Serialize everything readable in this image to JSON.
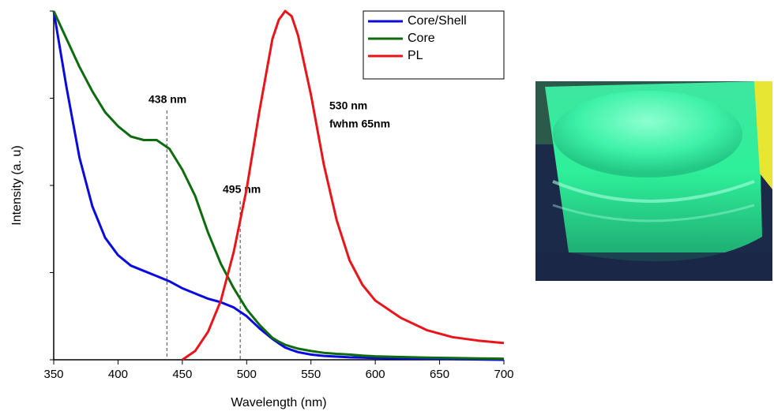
{
  "chart_data": {
    "type": "line",
    "xlabel": "Wavelength (nm)",
    "ylabel": "Intensity (a. u)",
    "x": [
      350,
      360,
      370,
      380,
      390,
      400,
      410,
      420,
      430,
      440,
      450,
      460,
      470,
      480,
      490,
      500,
      510,
      520,
      525,
      530,
      535,
      540,
      550,
      560,
      570,
      580,
      590,
      600,
      620,
      640,
      660,
      680,
      700
    ],
    "series": [
      {
        "name": "Core/Shell",
        "color": "#0a0adf",
        "values": [
          1.0,
          0.78,
          0.58,
          0.44,
          0.35,
          0.3,
          0.27,
          0.255,
          0.24,
          0.225,
          0.205,
          0.19,
          0.175,
          0.165,
          0.15,
          0.125,
          0.09,
          0.06,
          0.047,
          0.035,
          0.028,
          0.022,
          0.015,
          0.011,
          0.009,
          0.007,
          0.006,
          0.005,
          0.004,
          0.003,
          0.002,
          0.001,
          0
        ]
      },
      {
        "name": "Core",
        "color": "#0e6b0e",
        "values": [
          1.0,
          0.92,
          0.84,
          0.77,
          0.71,
          0.67,
          0.64,
          0.63,
          0.63,
          0.605,
          0.545,
          0.47,
          0.365,
          0.275,
          0.205,
          0.145,
          0.1,
          0.063,
          0.052,
          0.043,
          0.037,
          0.032,
          0.025,
          0.02,
          0.017,
          0.015,
          0.012,
          0.01,
          0.008,
          0.006,
          0.005,
          0.004,
          0.003
        ]
      },
      {
        "name": "PL",
        "color": "#e8161b",
        "values": [
          null,
          null,
          null,
          null,
          null,
          null,
          null,
          null,
          null,
          null,
          0,
          0.025,
          0.08,
          0.17,
          0.31,
          0.49,
          0.715,
          0.92,
          0.975,
          1.0,
          0.985,
          0.93,
          0.76,
          0.56,
          0.4,
          0.285,
          0.215,
          0.17,
          0.12,
          0.085,
          0.065,
          0.055,
          0.048
        ]
      }
    ],
    "xlim": [
      350,
      700
    ],
    "xticks": [
      350,
      400,
      450,
      500,
      550,
      600,
      650,
      700
    ],
    "ylim": [
      0,
      1
    ],
    "yticks": [
      0,
      0.25,
      0.5,
      0.75,
      1
    ],
    "vlines": [
      438,
      495
    ],
    "annotations": [
      "438 nm",
      "495 nm",
      "530 nm",
      "fwhm 65nm"
    ],
    "legend": "top-right"
  }
}
